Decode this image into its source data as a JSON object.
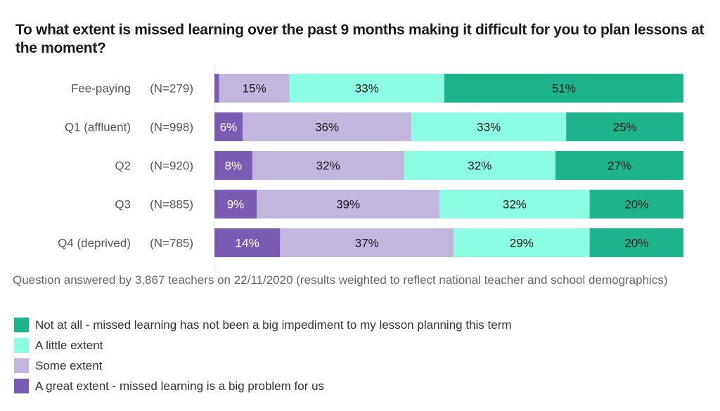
{
  "chart_data": {
    "type": "bar",
    "orientation": "horizontal-stacked-100",
    "title": "To what extent is missed learning over the past 9 months making it difficult for you to plan lessons at the moment?",
    "xlabel": "",
    "ylabel": "",
    "xlim": [
      0,
      100
    ],
    "grid": false,
    "legend_position": "bottom-left",
    "categories": [
      "Fee-paying",
      "Q1 (affluent)",
      "Q2",
      "Q3",
      "Q4 (deprived)"
    ],
    "sample_sizes": [
      "(N=279)",
      "(N=998)",
      "(N=920)",
      "(N=885)",
      "(N=785)"
    ],
    "series": [
      {
        "name": "A great extent - missed learning is a big problem for us",
        "color": "#7b5cb5",
        "label_color": "#ffffff",
        "values": [
          1,
          6,
          8,
          9,
          14
        ]
      },
      {
        "name": "Some extent",
        "color": "#c3b6de",
        "label_color": "#1a1a1a",
        "values": [
          15,
          36,
          32,
          39,
          37
        ]
      },
      {
        "name": "A little extent",
        "color": "#8cfde3",
        "label_color": "#1a1a1a",
        "values": [
          33,
          33,
          32,
          32,
          29
        ]
      },
      {
        "name": "Not at all - missed learning has not been a big impediment to my lesson planning this term",
        "color": "#1db48b",
        "label_color": "#1a1a1a",
        "values": [
          51,
          25,
          27,
          20,
          20
        ]
      }
    ],
    "note": "Question answered by 3,867 teachers on 22/11/2020 (results weighted to reflect national teacher and school demographics)"
  },
  "legend": [
    {
      "label": "Not at all - missed learning has not been a big impediment to my lesson planning this term",
      "color": "#1db48b"
    },
    {
      "label": "A little extent",
      "color": "#8cfde3"
    },
    {
      "label": "Some extent",
      "color": "#c3b6de"
    },
    {
      "label": "A great extent - missed learning is a big problem for us",
      "color": "#7b5cb5"
    }
  ]
}
